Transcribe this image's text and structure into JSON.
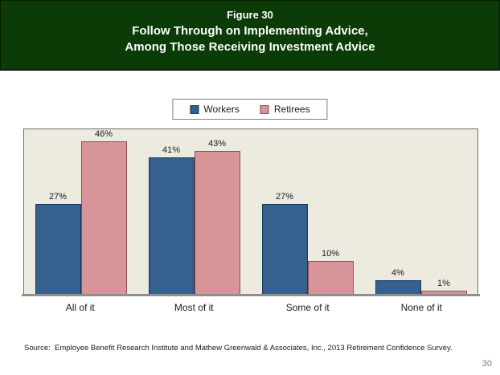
{
  "header": {
    "figure_label": "Figure 30",
    "title_line1": "Follow Through on Implementing Advice,",
    "title_line2": "Among Those Receiving Investment Advice"
  },
  "chart_data": {
    "type": "bar",
    "categories": [
      "All of it",
      "Most of it",
      "Some of it",
      "None of it"
    ],
    "series": [
      {
        "name": "Workers",
        "color": "#36618E",
        "border_color": "#17365D",
        "values": [
          27,
          41,
          27,
          4
        ]
      },
      {
        "name": "Retirees",
        "color": "#D89599",
        "border_color": "#8E5153",
        "values": [
          46,
          43,
          10,
          1
        ]
      }
    ],
    "value_suffix": "%",
    "ylim": [
      0,
      50
    ],
    "grid": false,
    "data_labels": true,
    "legend_position": "top-center",
    "plot_background": "#EDEBE0"
  },
  "footer": {
    "source": "Source:  Employee Benefit Research Institute and Mathew Greenwald & Associates, Inc., 2013 Retirement Confidence Survey.",
    "page_number": "30"
  },
  "colors": {
    "header_background": "#0B3B06",
    "header_text": "#FFFFFF",
    "axis_line": "#8F8F8F",
    "page_number": "#808080"
  }
}
